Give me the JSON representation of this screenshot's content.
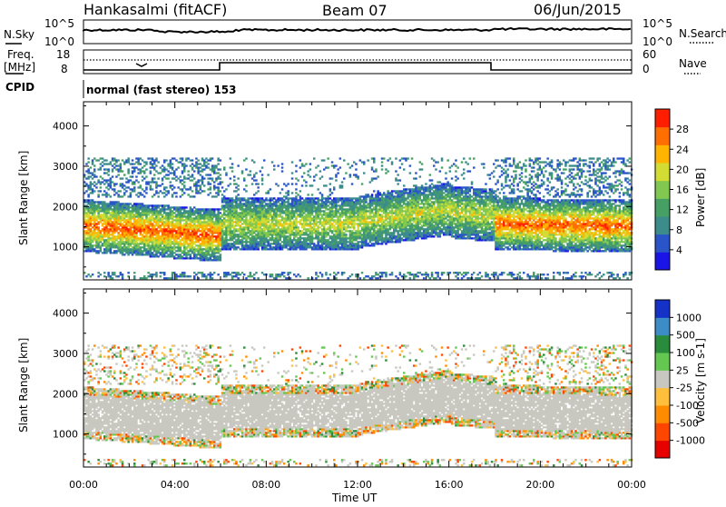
{
  "header": {
    "station": "Hankasalmi (fitACF)",
    "beam": "Beam 07",
    "date": "06/Jun/2015"
  },
  "panels": {
    "noise": {
      "left_label": "N.Sky",
      "right_label": "N.Search",
      "left_ticks": [
        "10^5",
        "10^0"
      ],
      "right_ticks": [
        "10^5",
        "10^0"
      ]
    },
    "freq": {
      "left_label_1": "Freq.",
      "left_label_2": "[MHz]",
      "right_label": "Nave",
      "left_ticks": [
        "18",
        "8"
      ],
      "right_ticks": [
        "60",
        "0"
      ]
    },
    "cpid": {
      "label": "CPID",
      "value": "normal (fast stereo) 153"
    }
  },
  "colors": {
    "power_scale": [
      "#1a14e6",
      "#2a55c8",
      "#3c8c8c",
      "#46a064",
      "#82c850",
      "#d2dc32",
      "#ffb400",
      "#ff6e00",
      "#ff1e00"
    ],
    "velocity_scale": [
      "#e60000",
      "#ff4600",
      "#ff8c00",
      "#ffbe3c",
      "#c8c8c0",
      "#64c850",
      "#288c3c",
      "#3c8cc8",
      "#1432c8"
    ]
  },
  "chart_data": [
    {
      "type": "heatmap",
      "name": "power",
      "ylabel": "Slant Range [km]",
      "ylim": [
        180,
        4600
      ],
      "yticks": [
        "4000",
        "3000",
        "2000",
        "1000"
      ],
      "colorbar_label": "Power [dB]",
      "colorbar_ticks": [
        "28",
        "24",
        "20",
        "16",
        "12",
        "8",
        "4"
      ],
      "colorbar_range": [
        0,
        32
      ],
      "x_ticks": [
        "00:00",
        "04:00",
        "08:00",
        "12:00",
        "16:00",
        "20:00",
        "00:00"
      ],
      "xlabel": "Time UT"
    },
    {
      "type": "heatmap",
      "name": "velocity",
      "ylabel": "Slant Range [km]",
      "ylim": [
        180,
        4600
      ],
      "yticks": [
        "4000",
        "3000",
        "2000",
        "1000"
      ],
      "colorbar_label": "Velocity [m s-1]",
      "colorbar_ticks": [
        "1000",
        "500",
        "100",
        "25",
        "-25",
        "-100",
        "-500",
        "-1000"
      ],
      "x_ticks": [
        "00:00",
        "04:00",
        "08:00",
        "12:00",
        "16:00",
        "20:00",
        "00:00"
      ],
      "xlabel": "Time UT"
    }
  ]
}
